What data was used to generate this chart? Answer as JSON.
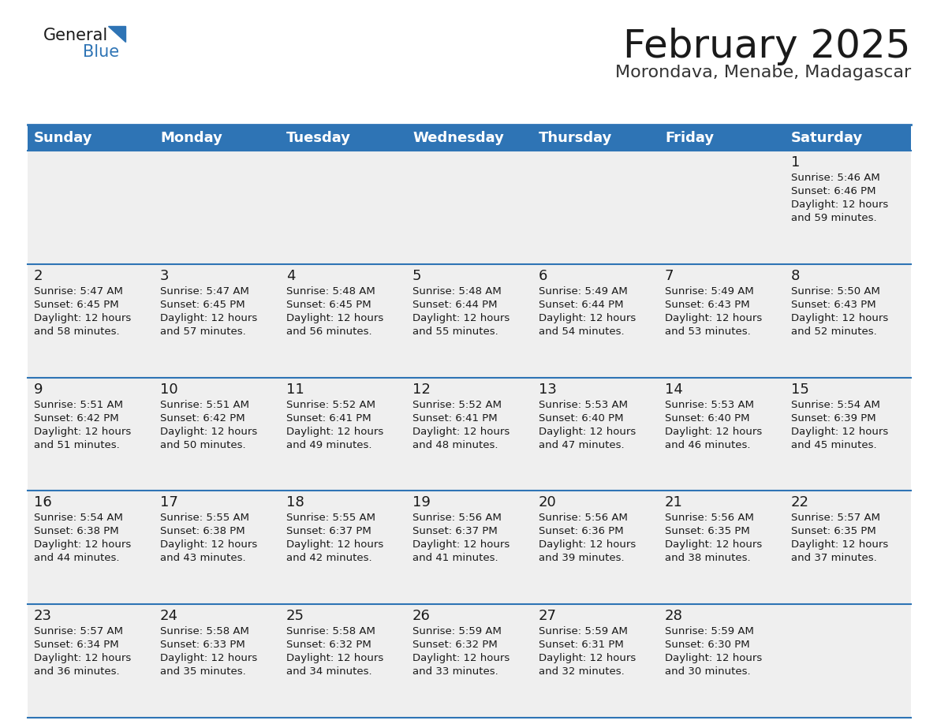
{
  "title": "February 2025",
  "subtitle": "Morondava, Menabe, Madagascar",
  "header_color": "#2E74B5",
  "header_text_color": "#FFFFFF",
  "background_color": "#FFFFFF",
  "cell_bg": "#EFEFEF",
  "separator_color": "#2E74B5",
  "day_headers": [
    "Sunday",
    "Monday",
    "Tuesday",
    "Wednesday",
    "Thursday",
    "Friday",
    "Saturday"
  ],
  "title_fontsize": 36,
  "subtitle_fontsize": 16,
  "header_fontsize": 13,
  "day_num_fontsize": 13,
  "info_fontsize": 9.5,
  "calendar_data": [
    [
      null,
      null,
      null,
      null,
      null,
      null,
      {
        "day": 1,
        "sunrise": "5:46 AM",
        "sunset": "6:46 PM",
        "daylight_hours": 12,
        "daylight_minutes": 59
      }
    ],
    [
      {
        "day": 2,
        "sunrise": "5:47 AM",
        "sunset": "6:45 PM",
        "daylight_hours": 12,
        "daylight_minutes": 58
      },
      {
        "day": 3,
        "sunrise": "5:47 AM",
        "sunset": "6:45 PM",
        "daylight_hours": 12,
        "daylight_minutes": 57
      },
      {
        "day": 4,
        "sunrise": "5:48 AM",
        "sunset": "6:45 PM",
        "daylight_hours": 12,
        "daylight_minutes": 56
      },
      {
        "day": 5,
        "sunrise": "5:48 AM",
        "sunset": "6:44 PM",
        "daylight_hours": 12,
        "daylight_minutes": 55
      },
      {
        "day": 6,
        "sunrise": "5:49 AM",
        "sunset": "6:44 PM",
        "daylight_hours": 12,
        "daylight_minutes": 54
      },
      {
        "day": 7,
        "sunrise": "5:49 AM",
        "sunset": "6:43 PM",
        "daylight_hours": 12,
        "daylight_minutes": 53
      },
      {
        "day": 8,
        "sunrise": "5:50 AM",
        "sunset": "6:43 PM",
        "daylight_hours": 12,
        "daylight_minutes": 52
      }
    ],
    [
      {
        "day": 9,
        "sunrise": "5:51 AM",
        "sunset": "6:42 PM",
        "daylight_hours": 12,
        "daylight_minutes": 51
      },
      {
        "day": 10,
        "sunrise": "5:51 AM",
        "sunset": "6:42 PM",
        "daylight_hours": 12,
        "daylight_minutes": 50
      },
      {
        "day": 11,
        "sunrise": "5:52 AM",
        "sunset": "6:41 PM",
        "daylight_hours": 12,
        "daylight_minutes": 49
      },
      {
        "day": 12,
        "sunrise": "5:52 AM",
        "sunset": "6:41 PM",
        "daylight_hours": 12,
        "daylight_minutes": 48
      },
      {
        "day": 13,
        "sunrise": "5:53 AM",
        "sunset": "6:40 PM",
        "daylight_hours": 12,
        "daylight_minutes": 47
      },
      {
        "day": 14,
        "sunrise": "5:53 AM",
        "sunset": "6:40 PM",
        "daylight_hours": 12,
        "daylight_minutes": 46
      },
      {
        "day": 15,
        "sunrise": "5:54 AM",
        "sunset": "6:39 PM",
        "daylight_hours": 12,
        "daylight_minutes": 45
      }
    ],
    [
      {
        "day": 16,
        "sunrise": "5:54 AM",
        "sunset": "6:38 PM",
        "daylight_hours": 12,
        "daylight_minutes": 44
      },
      {
        "day": 17,
        "sunrise": "5:55 AM",
        "sunset": "6:38 PM",
        "daylight_hours": 12,
        "daylight_minutes": 43
      },
      {
        "day": 18,
        "sunrise": "5:55 AM",
        "sunset": "6:37 PM",
        "daylight_hours": 12,
        "daylight_minutes": 42
      },
      {
        "day": 19,
        "sunrise": "5:56 AM",
        "sunset": "6:37 PM",
        "daylight_hours": 12,
        "daylight_minutes": 41
      },
      {
        "day": 20,
        "sunrise": "5:56 AM",
        "sunset": "6:36 PM",
        "daylight_hours": 12,
        "daylight_minutes": 39
      },
      {
        "day": 21,
        "sunrise": "5:56 AM",
        "sunset": "6:35 PM",
        "daylight_hours": 12,
        "daylight_minutes": 38
      },
      {
        "day": 22,
        "sunrise": "5:57 AM",
        "sunset": "6:35 PM",
        "daylight_hours": 12,
        "daylight_minutes": 37
      }
    ],
    [
      {
        "day": 23,
        "sunrise": "5:57 AM",
        "sunset": "6:34 PM",
        "daylight_hours": 12,
        "daylight_minutes": 36
      },
      {
        "day": 24,
        "sunrise": "5:58 AM",
        "sunset": "6:33 PM",
        "daylight_hours": 12,
        "daylight_minutes": 35
      },
      {
        "day": 25,
        "sunrise": "5:58 AM",
        "sunset": "6:32 PM",
        "daylight_hours": 12,
        "daylight_minutes": 34
      },
      {
        "day": 26,
        "sunrise": "5:59 AM",
        "sunset": "6:32 PM",
        "daylight_hours": 12,
        "daylight_minutes": 33
      },
      {
        "day": 27,
        "sunrise": "5:59 AM",
        "sunset": "6:31 PM",
        "daylight_hours": 12,
        "daylight_minutes": 32
      },
      {
        "day": 28,
        "sunrise": "5:59 AM",
        "sunset": "6:30 PM",
        "daylight_hours": 12,
        "daylight_minutes": 30
      },
      null
    ]
  ]
}
